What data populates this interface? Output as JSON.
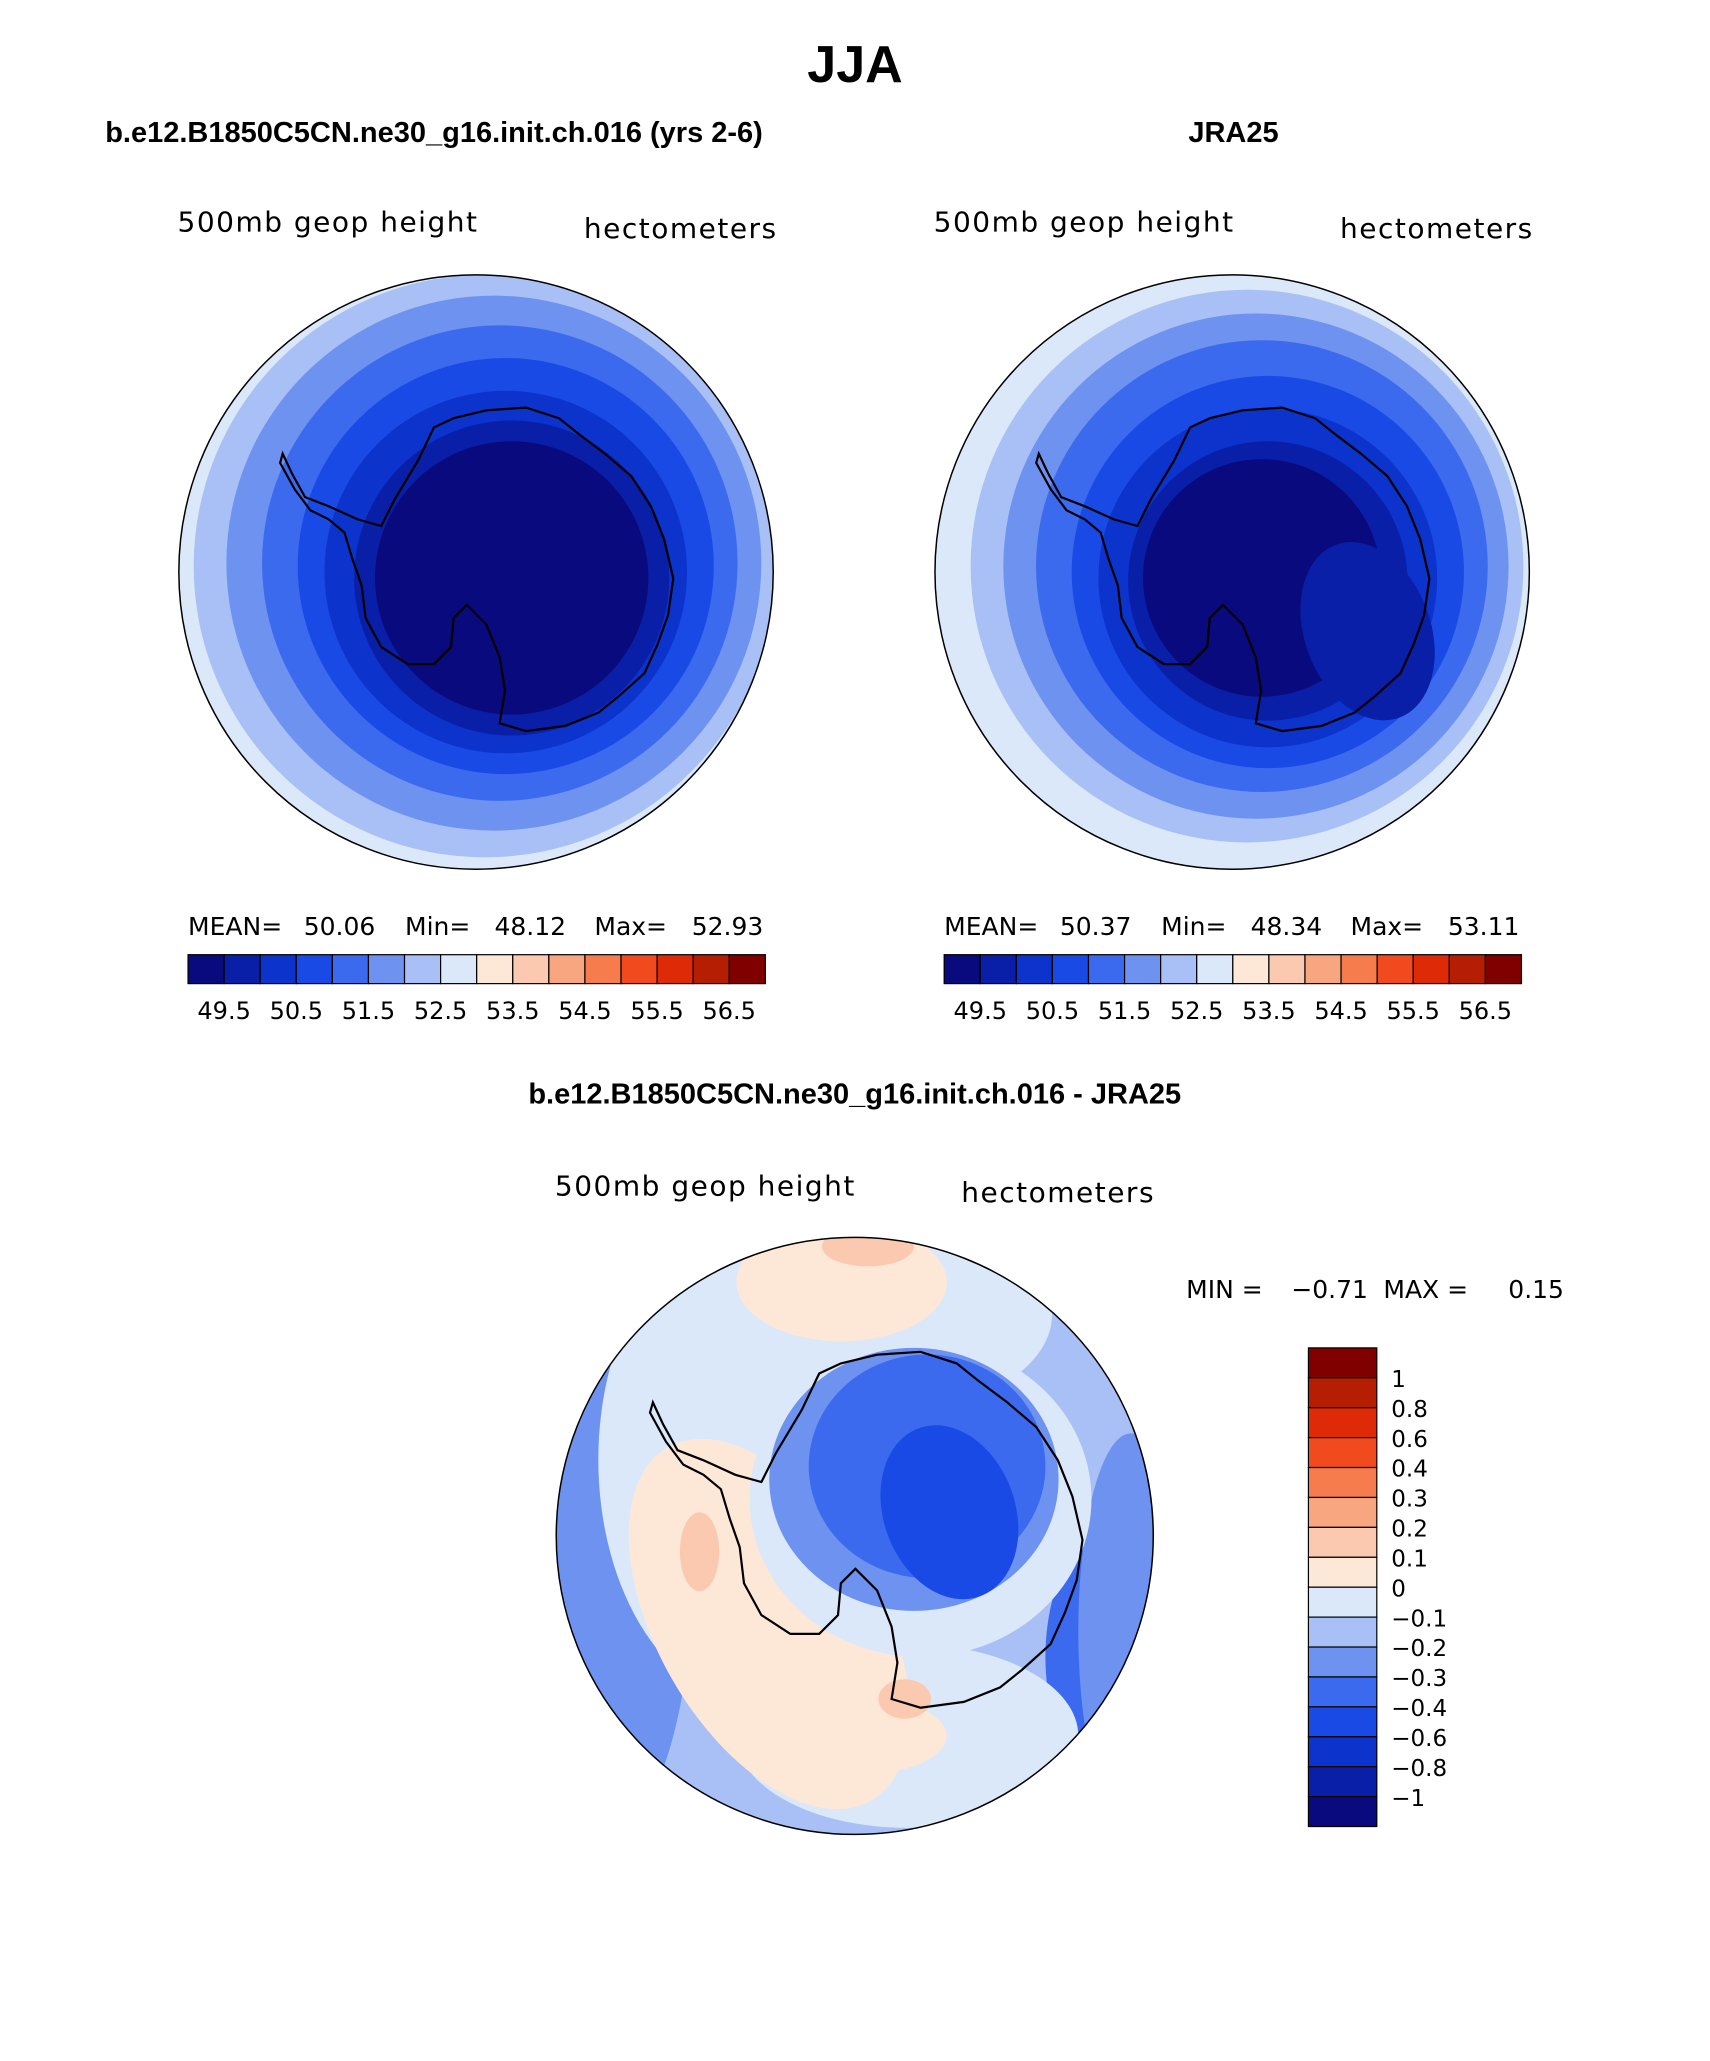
{
  "title": "JJA",
  "panels": [
    {
      "title": "b.e12.B1850C5CN.ne30_g16.init.ch.016 (yrs 2-6)",
      "variable": "500mb geop height",
      "units": "hectometers",
      "stats": [
        {
          "label": "MEAN=",
          "value": "50.06"
        },
        {
          "label": "Min=",
          "value": "48.12"
        },
        {
          "label": "Max=",
          "value": "52.93"
        }
      ],
      "colorbar": {
        "colors": [
          "#0a0a7f",
          "#0a1fa8",
          "#0c33cc",
          "#1a4ae6",
          "#3b6aee",
          "#6e92f0",
          "#a8c0f5",
          "#dbe8fa",
          "#fde8d8",
          "#fbc9b0",
          "#f8a680",
          "#f67c4e",
          "#f04a1e",
          "#de2a07",
          "#b51e02",
          "#800000"
        ],
        "labels": [
          "49.5",
          "50.5",
          "51.5",
          "52.5",
          "53.5",
          "54.5",
          "55.5",
          "56.5"
        ]
      }
    },
    {
      "title": "JRA25",
      "variable": "500mb geop height",
      "units": "hectometers",
      "stats": [
        {
          "label": "MEAN=",
          "value": "50.37"
        },
        {
          "label": "Min=",
          "value": "48.34"
        },
        {
          "label": "Max=",
          "value": "53.11"
        }
      ],
      "colorbar": {
        "colors": [
          "#0a0a7f",
          "#0a1fa8",
          "#0c33cc",
          "#1a4ae6",
          "#3b6aee",
          "#6e92f0",
          "#a8c0f5",
          "#dbe8fa",
          "#fde8d8",
          "#fbc9b0",
          "#f8a680",
          "#f67c4e",
          "#f04a1e",
          "#de2a07",
          "#b51e02",
          "#800000"
        ],
        "labels": [
          "49.5",
          "50.5",
          "51.5",
          "52.5",
          "53.5",
          "54.5",
          "55.5",
          "56.5"
        ]
      }
    },
    {
      "title": "b.e12.B1850C5CN.ne30_g16.init.ch.016 - JRA25",
      "variable": "500mb geop height",
      "units": "hectometers",
      "stats": [
        {
          "label": "MIN =",
          "value": "−0.71"
        },
        {
          "label": "MAX =",
          "value": "0.15"
        }
      ],
      "colorbar": {
        "colors": [
          "#800000",
          "#b51e02",
          "#de2a07",
          "#f04a1e",
          "#f67c4e",
          "#f8a680",
          "#fbc9b0",
          "#fde8d8",
          "#dbe8fa",
          "#a8c0f5",
          "#6e92f0",
          "#3b6aee",
          "#1a4ae6",
          "#0c33cc",
          "#0a1fa8",
          "#0a0a7f"
        ],
        "labels": [
          "1",
          "0.8",
          "0.6",
          "0.4",
          "0.3",
          "0.2",
          "0.1",
          "0",
          "−0.1",
          "−0.2",
          "−0.3",
          "−0.4",
          "−0.6",
          "−0.8",
          "−1"
        ]
      }
    }
  ]
}
